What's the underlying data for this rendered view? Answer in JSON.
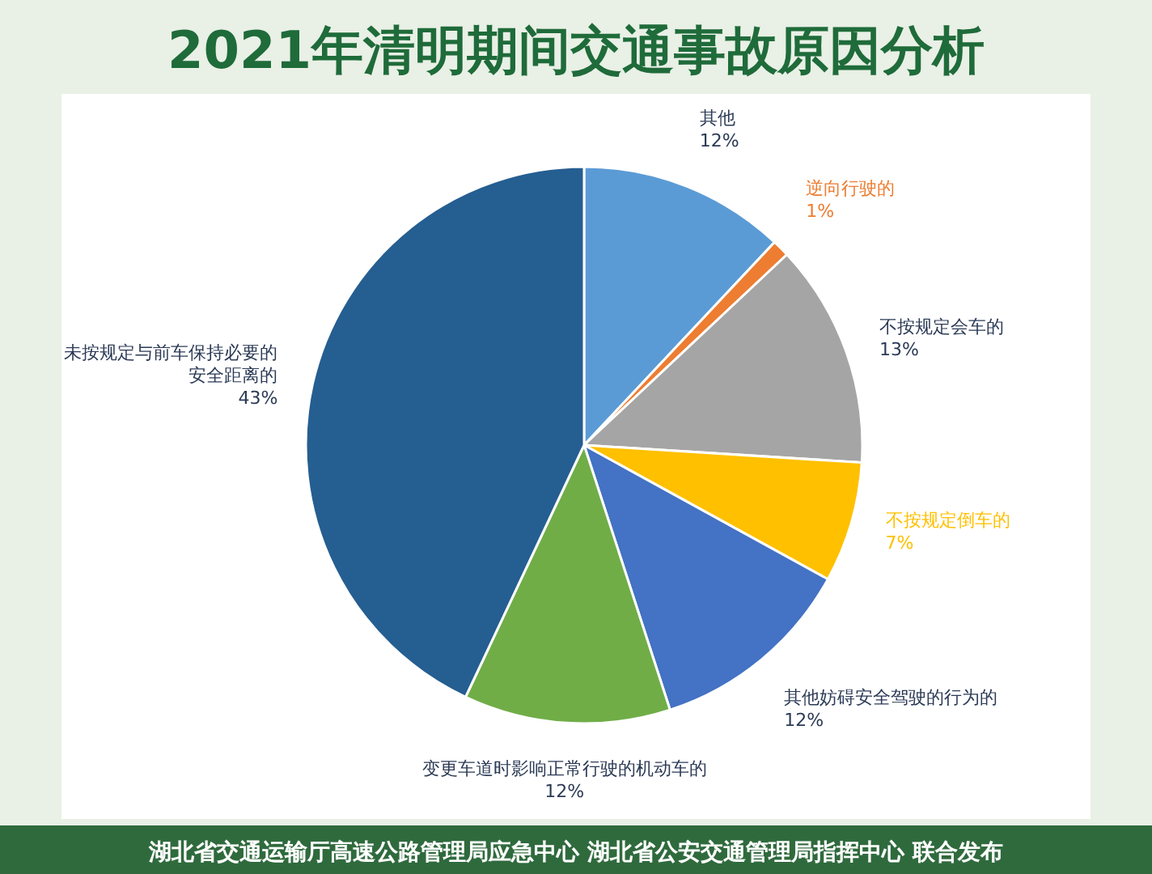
{
  "chart_data": {
    "type": "pie",
    "title": "2021年清明期间交通事故原因分析",
    "categories": [
      "其他",
      "逆向行驶的",
      "不按规定会车的",
      "不按规定倒车的",
      "其他妨碍安全驾驶的行为的",
      "变更车道时影响正常行驶的机动车的",
      "未按规定与前车保持必要的安全距离的"
    ],
    "values": [
      12,
      1,
      13,
      7,
      12,
      12,
      43
    ],
    "colors": [
      "#5b9bd5",
      "#ed7d31",
      "#a5a5a5",
      "#ffc000",
      "#4472c4",
      "#70ad47",
      "#255e91"
    ],
    "value_labels": [
      "12%",
      "1%",
      "13%",
      "7%",
      "12%",
      "12%",
      "43%"
    ],
    "annotations": [
      "湖北省交通运输厅高速公路管理局应急中心  湖北省公安交通管理局指挥中心  联合发布"
    ]
  }
}
